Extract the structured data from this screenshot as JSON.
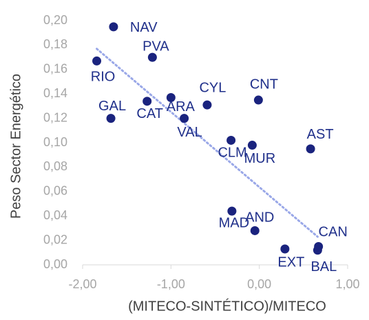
{
  "chart_data": {
    "type": "scatter",
    "x_label": "(MITECO-SINTÉTICO)/MITECO",
    "y_label": "Peso Sector Energético",
    "color": "#1a237e",
    "label_color": "#1f2f8a",
    "point_labels": [
      "NAV",
      "PVA",
      "RIO",
      "CYL",
      "CNT",
      "ARA",
      "CAT",
      "GAL",
      "VAL",
      "CLM",
      "MUR",
      "AST",
      "MAD",
      "AND",
      "EXT",
      "BAL",
      "CAN"
    ],
    "x": [
      -1.65,
      -1.21,
      -1.84,
      -0.59,
      -0.01,
      -1.0,
      -1.27,
      -1.68,
      -0.85,
      -0.32,
      -0.08,
      0.58,
      -0.31,
      -0.05,
      0.29,
      0.66,
      0.67
    ],
    "y": [
      0.195,
      0.17,
      0.167,
      0.131,
      0.135,
      0.137,
      0.134,
      0.12,
      0.12,
      0.102,
      0.098,
      0.095,
      0.044,
      0.028,
      0.013,
      0.012,
      0.015
    ],
    "trendline": {
      "color": "#9aa8e8",
      "x": [
        -1.84,
        0.66
      ],
      "y": [
        0.177,
        0.023
      ]
    },
    "xlim": [
      -2,
      1
    ],
    "ylim": [
      0,
      0.2
    ],
    "xticks": [
      {
        "value": -2,
        "label": "-2,00"
      },
      {
        "value": -1,
        "label": "-1,00"
      },
      {
        "value": 0,
        "label": "0,00"
      },
      {
        "value": 1,
        "label": "1,00"
      }
    ],
    "yticks": [
      {
        "value": 0,
        "label": "0,00"
      },
      {
        "value": 0.02,
        "label": "0,02"
      },
      {
        "value": 0.04,
        "label": "0,04"
      },
      {
        "value": 0.06,
        "label": "0,06"
      },
      {
        "value": 0.08,
        "label": "0,08"
      },
      {
        "value": 0.1,
        "label": "0,10"
      },
      {
        "value": 0.12,
        "label": "0,12"
      },
      {
        "value": 0.14,
        "label": "0,14"
      },
      {
        "value": 0.16,
        "label": "0,16"
      },
      {
        "value": 0.18,
        "label": "0,18"
      },
      {
        "value": 0.2,
        "label": "0,20"
      }
    ]
  }
}
